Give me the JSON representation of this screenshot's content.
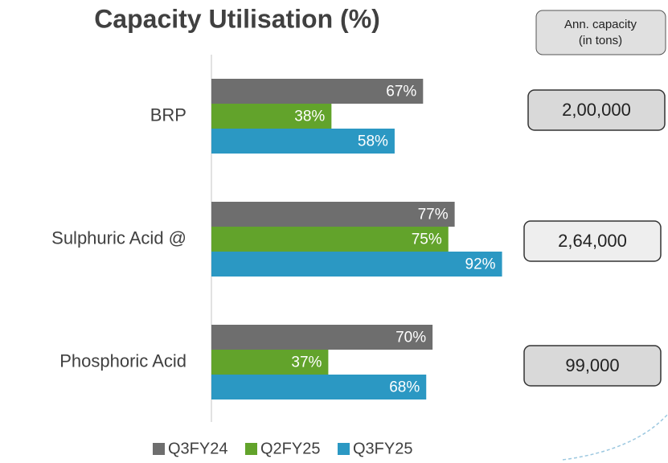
{
  "chart_data": {
    "type": "hbar",
    "title": "Capacity Utilisation (%)",
    "categories": [
      "BRP",
      "Sulphuric Acid @",
      "Phosphoric Acid"
    ],
    "series": [
      {
        "name": "Q3FY24",
        "color": "#6e6e6e",
        "values": [
          67,
          77,
          70
        ],
        "value_labels": [
          "67%",
          "77%",
          "70%"
        ]
      },
      {
        "name": "Q2FY25",
        "color": "#62a32b",
        "values": [
          38,
          75,
          37
        ],
        "value_labels": [
          "38%",
          "75%",
          "37%"
        ]
      },
      {
        "name": "Q3FY25",
        "color": "#2b98c3",
        "values": [
          58,
          92,
          68
        ],
        "value_labels": [
          "58%",
          "92%",
          "68%"
        ]
      }
    ],
    "xlim": [
      0,
      100
    ],
    "capacity_header": [
      "Ann. capacity",
      "(in tons)"
    ],
    "capacities": [
      "2,00,000",
      "2,64,000",
      "99,000"
    ]
  }
}
